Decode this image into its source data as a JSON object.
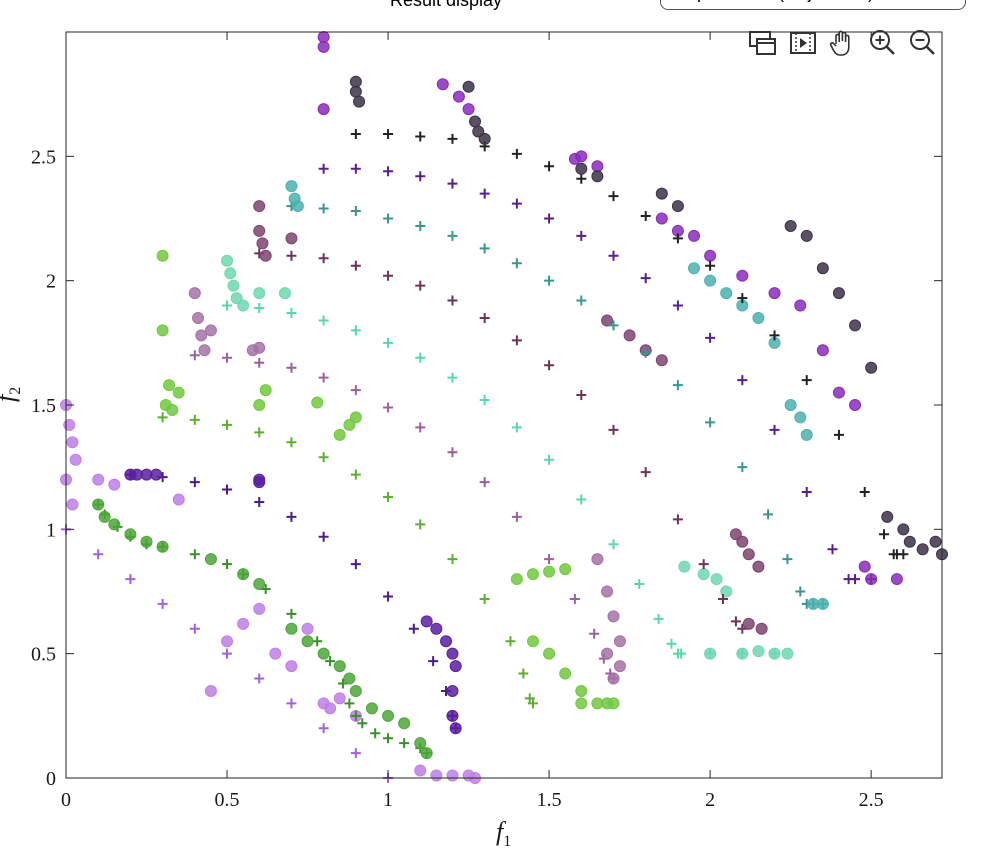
{
  "window": {
    "header_label": "Result display",
    "selector_value": "Operation - (Objectives)"
  },
  "toolbar": {
    "icons": [
      "export-icon",
      "play-icon",
      "pan-hand-icon",
      "zoom-in-icon",
      "zoom-out-icon"
    ]
  },
  "chart_data": {
    "type": "scatter",
    "xlabel_main": "f",
    "xlabel_sub": "1",
    "ylabel_main": "f",
    "ylabel_sub": "2",
    "xlim": [
      0,
      2.72
    ],
    "ylim": [
      0,
      3.0
    ],
    "xticks": [
      0,
      0.5,
      1,
      1.5,
      2,
      2.5
    ],
    "xtick_labels": [
      "0",
      "0.5",
      "1",
      "1.5",
      "2",
      "2.5"
    ],
    "yticks": [
      0,
      0.5,
      1,
      1.5,
      2,
      2.5
    ],
    "ytick_labels": [
      "0",
      "0.5",
      "1",
      "1.5",
      "2",
      "2.5"
    ],
    "grid": false,
    "legend": "none",
    "series": [
      {
        "marker": "plus",
        "color": "#a35fe0",
        "x": [
          0,
          0.1,
          0.2,
          0.3,
          0.4,
          0.5,
          0.6,
          0.7,
          0.8,
          0.9,
          1.0
        ],
        "y": [
          1.0,
          0.9,
          0.8,
          0.7,
          0.6,
          0.5,
          0.4,
          0.3,
          0.2,
          0.1,
          0.0
        ]
      },
      {
        "marker": "circle",
        "color": "#c07fe6",
        "x": [
          0.0,
          0.01,
          0.02,
          0.03,
          0.0,
          0.02,
          0.1,
          0.15,
          0.35,
          0.45,
          0.5,
          0.55,
          0.6,
          0.65,
          0.7,
          0.75,
          0.8,
          0.85,
          0.82,
          0.9,
          1.1,
          1.15,
          1.2,
          1.25,
          1.27
        ],
        "y": [
          1.5,
          1.42,
          1.35,
          1.28,
          1.2,
          1.1,
          1.2,
          1.18,
          1.12,
          0.35,
          0.55,
          0.62,
          0.68,
          0.5,
          0.45,
          0.6,
          0.3,
          0.32,
          0.28,
          0.25,
          0.03,
          0.01,
          0.01,
          0.01,
          0.0
        ]
      },
      {
        "marker": "plus",
        "color": "#3a8f2a",
        "x": [
          0.1,
          0.12,
          0.16,
          0.2,
          0.25,
          0.3,
          0.4,
          0.5,
          0.55,
          0.62,
          0.7,
          0.78,
          0.82,
          0.86,
          0.88,
          0.9,
          0.92,
          0.96,
          1.0,
          1.05,
          1.1,
          1.12
        ],
        "y": [
          1.1,
          1.06,
          1.01,
          0.97,
          0.94,
          0.93,
          0.9,
          0.86,
          0.82,
          0.76,
          0.66,
          0.55,
          0.47,
          0.38,
          0.3,
          0.25,
          0.22,
          0.18,
          0.16,
          0.14,
          0.12,
          0.1
        ]
      },
      {
        "marker": "circle",
        "color": "#4ea63a",
        "x": [
          0.1,
          0.12,
          0.15,
          0.2,
          0.25,
          0.3,
          0.45,
          0.55,
          0.6,
          0.7,
          0.75,
          0.8,
          0.85,
          0.88,
          0.9,
          0.95,
          1.0,
          1.05,
          1.1,
          1.12
        ],
        "y": [
          1.1,
          1.05,
          1.02,
          0.98,
          0.95,
          0.93,
          0.88,
          0.82,
          0.78,
          0.6,
          0.55,
          0.5,
          0.45,
          0.4,
          0.35,
          0.28,
          0.25,
          0.22,
          0.14,
          0.1
        ]
      },
      {
        "marker": "plus",
        "color": "#4b1a8e",
        "x": [
          0.2,
          0.3,
          0.4,
          0.5,
          0.6,
          0.7,
          0.8,
          0.9,
          1.0,
          1.08,
          1.14,
          1.18,
          1.2,
          1.21
        ],
        "y": [
          1.22,
          1.21,
          1.19,
          1.16,
          1.11,
          1.05,
          0.97,
          0.86,
          0.73,
          0.6,
          0.47,
          0.35,
          0.25,
          0.2
        ]
      },
      {
        "marker": "circle",
        "color": "#5b1fa0",
        "x": [
          0.2,
          0.22,
          0.25,
          0.28,
          0.6,
          0.6,
          1.12,
          1.15,
          1.18,
          1.2,
          1.21,
          1.2,
          1.2,
          1.21
        ],
        "y": [
          1.22,
          1.22,
          1.22,
          1.22,
          1.2,
          1.19,
          0.63,
          0.6,
          0.55,
          0.5,
          0.45,
          0.35,
          0.25,
          0.2
        ]
      },
      {
        "marker": "plus",
        "color": "#5cae2e",
        "x": [
          0.3,
          0.4,
          0.5,
          0.6,
          0.7,
          0.8,
          0.9,
          1.0,
          1.1,
          1.2,
          1.3,
          1.38,
          1.42,
          1.44,
          1.45
        ],
        "y": [
          1.45,
          1.44,
          1.42,
          1.39,
          1.35,
          1.29,
          1.22,
          1.13,
          1.02,
          0.88,
          0.72,
          0.55,
          0.42,
          0.32,
          0.3
        ]
      },
      {
        "marker": "circle",
        "color": "#72c840",
        "x": [
          0.3,
          0.3,
          0.32,
          0.35,
          0.31,
          0.33,
          0.6,
          0.62,
          0.78,
          0.85,
          0.88,
          0.9,
          1.4,
          1.45,
          1.5,
          1.55,
          1.6,
          1.65,
          1.68,
          1.7,
          1.6,
          1.55,
          1.5,
          1.45
        ],
        "y": [
          2.1,
          1.8,
          1.58,
          1.55,
          1.5,
          1.48,
          1.5,
          1.56,
          1.51,
          1.38,
          1.42,
          1.45,
          0.8,
          0.82,
          0.83,
          0.84,
          0.3,
          0.3,
          0.3,
          0.3,
          0.35,
          0.42,
          0.5,
          0.55
        ]
      },
      {
        "marker": "plus",
        "color": "#9a609a",
        "x": [
          0.4,
          0.5,
          0.6,
          0.7,
          0.8,
          0.9,
          1.0,
          1.1,
          1.2,
          1.3,
          1.4,
          1.5,
          1.58,
          1.64,
          1.67,
          1.69,
          1.7
        ],
        "y": [
          1.7,
          1.69,
          1.67,
          1.65,
          1.61,
          1.56,
          1.49,
          1.41,
          1.31,
          1.19,
          1.05,
          0.88,
          0.72,
          0.58,
          0.48,
          0.42,
          0.4
        ]
      },
      {
        "marker": "circle",
        "color": "#a672a6",
        "x": [
          0.4,
          0.41,
          0.42,
          0.43,
          0.45,
          0.58,
          0.6,
          1.65,
          1.68,
          1.7,
          1.72,
          1.72,
          1.7,
          1.68
        ],
        "y": [
          1.95,
          1.85,
          1.78,
          1.72,
          1.8,
          1.72,
          1.73,
          0.88,
          0.75,
          0.65,
          0.55,
          0.45,
          0.4,
          0.5
        ]
      },
      {
        "marker": "plus",
        "color": "#58d8a8",
        "x": [
          0.5,
          0.6,
          0.7,
          0.8,
          0.9,
          1.0,
          1.1,
          1.2,
          1.3,
          1.4,
          1.5,
          1.6,
          1.7,
          1.78,
          1.84,
          1.88,
          1.9,
          1.91,
          2.0,
          2.1,
          2.2
        ],
        "y": [
          1.9,
          1.89,
          1.87,
          1.84,
          1.8,
          1.75,
          1.69,
          1.61,
          1.52,
          1.41,
          1.28,
          1.12,
          0.94,
          0.78,
          0.64,
          0.54,
          0.5,
          0.5,
          0.5,
          0.5,
          0.5
        ]
      },
      {
        "marker": "circle",
        "color": "#6ed8b0",
        "x": [
          0.5,
          0.51,
          0.52,
          0.53,
          0.55,
          0.6,
          0.68,
          1.92,
          1.98,
          2.02,
          2.05,
          2.0,
          2.1,
          2.15,
          2.2,
          2.24
        ],
        "y": [
          2.08,
          2.03,
          1.98,
          1.93,
          1.9,
          1.95,
          1.95,
          0.85,
          0.82,
          0.8,
          0.75,
          0.5,
          0.5,
          0.51,
          0.5,
          0.5
        ]
      },
      {
        "marker": "plus",
        "color": "#6b3357",
        "x": [
          0.6,
          0.7,
          0.8,
          0.9,
          1.0,
          1.1,
          1.2,
          1.3,
          1.4,
          1.5,
          1.6,
          1.7,
          1.8,
          1.9,
          1.98,
          2.04,
          2.08,
          2.1
        ],
        "y": [
          2.11,
          2.1,
          2.09,
          2.06,
          2.02,
          1.98,
          1.92,
          1.85,
          1.76,
          1.66,
          1.54,
          1.4,
          1.23,
          1.04,
          0.86,
          0.72,
          0.63,
          0.6
        ]
      },
      {
        "marker": "circle",
        "color": "#7e4470",
        "x": [
          0.6,
          0.6,
          0.61,
          0.62,
          0.7,
          1.68,
          1.75,
          1.8,
          1.85,
          2.08,
          2.1,
          2.12,
          2.15,
          2.16,
          2.12
        ],
        "y": [
          2.3,
          2.2,
          2.15,
          2.1,
          2.17,
          1.84,
          1.78,
          1.72,
          1.68,
          0.98,
          0.95,
          0.9,
          0.85,
          0.6,
          0.62
        ]
      },
      {
        "marker": "plus",
        "color": "#3a9590",
        "x": [
          0.7,
          0.8,
          0.9,
          1.0,
          1.1,
          1.2,
          1.3,
          1.4,
          1.5,
          1.6,
          1.7,
          1.8,
          1.9,
          2.0,
          2.1,
          2.18,
          2.24,
          2.28,
          2.3,
          2.32,
          2.35
        ],
        "y": [
          2.3,
          2.29,
          2.28,
          2.25,
          2.22,
          2.18,
          2.13,
          2.07,
          2.0,
          1.92,
          1.82,
          1.71,
          1.58,
          1.43,
          1.25,
          1.06,
          0.88,
          0.75,
          0.7,
          0.7,
          0.7
        ]
      },
      {
        "marker": "circle",
        "color": "#4cb2b0",
        "x": [
          0.7,
          0.71,
          0.72,
          1.95,
          2.0,
          2.05,
          2.1,
          2.15,
          2.2,
          2.25,
          2.28,
          2.3,
          2.32,
          2.35
        ],
        "y": [
          2.38,
          2.33,
          2.3,
          2.05,
          2.0,
          1.95,
          1.9,
          1.85,
          1.75,
          1.5,
          1.45,
          1.38,
          0.7,
          0.7
        ]
      },
      {
        "marker": "plus",
        "color": "#5a1e8a",
        "x": [
          0.8,
          0.9,
          1.0,
          1.1,
          1.2,
          1.3,
          1.4,
          1.5,
          1.6,
          1.7,
          1.8,
          1.9,
          2.0,
          2.1,
          2.2,
          2.3,
          2.38,
          2.43,
          2.45,
          2.5
        ],
        "y": [
          2.45,
          2.45,
          2.44,
          2.42,
          2.39,
          2.35,
          2.31,
          2.25,
          2.18,
          2.1,
          2.01,
          1.9,
          1.77,
          1.6,
          1.4,
          1.15,
          0.92,
          0.8,
          0.8,
          0.8
        ]
      },
      {
        "marker": "circle",
        "color": "#8a2cb8",
        "x": [
          0.8,
          0.8,
          0.8,
          1.17,
          1.22,
          1.25,
          1.58,
          1.6,
          1.65,
          1.85,
          1.9,
          1.95,
          2.0,
          2.1,
          2.2,
          2.28,
          2.35,
          2.4,
          2.45,
          2.48,
          2.5,
          2.58
        ],
        "y": [
          2.98,
          2.94,
          2.69,
          2.79,
          2.74,
          2.69,
          2.49,
          2.5,
          2.46,
          2.25,
          2.2,
          2.18,
          2.1,
          2.02,
          1.95,
          1.9,
          1.72,
          1.55,
          1.5,
          0.85,
          0.8,
          0.8
        ]
      },
      {
        "marker": "plus",
        "color": "#222222",
        "x": [
          0.9,
          1.0,
          1.1,
          1.2,
          1.3,
          1.4,
          1.5,
          1.6,
          1.7,
          1.8,
          1.9,
          2.0,
          2.1,
          2.2,
          2.3,
          2.4,
          2.48,
          2.54,
          2.57,
          2.58,
          2.6
        ],
        "y": [
          2.59,
          2.59,
          2.58,
          2.57,
          2.54,
          2.51,
          2.46,
          2.41,
          2.34,
          2.26,
          2.17,
          2.06,
          1.93,
          1.78,
          1.6,
          1.38,
          1.15,
          0.98,
          0.9,
          0.9,
          0.9
        ]
      },
      {
        "marker": "circle",
        "color": "#3c3348",
        "x": [
          0.9,
          0.9,
          0.91,
          1.25,
          1.27,
          1.28,
          1.3,
          1.6,
          1.65,
          1.85,
          1.9,
          2.25,
          2.3,
          2.35,
          2.4,
          2.45,
          2.5,
          2.55,
          2.6,
          2.62,
          2.66,
          2.7,
          2.72
        ],
        "y": [
          2.8,
          2.76,
          2.72,
          2.78,
          2.64,
          2.6,
          2.57,
          2.45,
          2.42,
          2.35,
          2.3,
          2.22,
          2.18,
          2.05,
          1.95,
          1.82,
          1.65,
          1.05,
          1.0,
          0.95,
          0.92,
          0.95,
          0.9
        ]
      }
    ]
  }
}
